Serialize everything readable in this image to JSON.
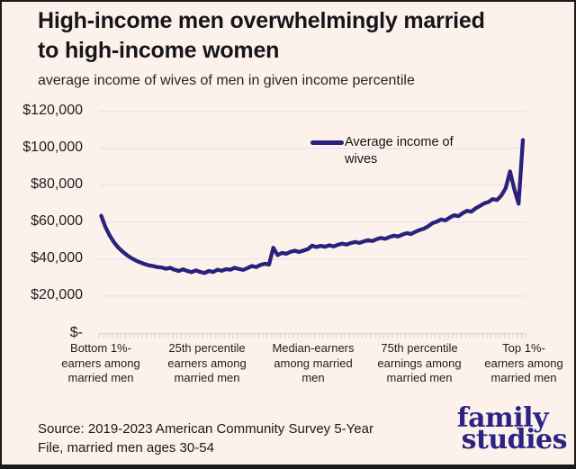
{
  "header": {
    "title": "High-income men overwhelmingly married\nto high-income women",
    "subtitle": "average income of wives of men in given income percentile"
  },
  "chart_data": {
    "type": "line",
    "title": "High-income men overwhelmingly married to high-income women",
    "subtitle": "average income of wives of men in given income percentile",
    "x_unit": "husband income percentile among married men",
    "x_range": [
      1,
      99
    ],
    "series": [
      {
        "name": "Average income of wives",
        "values": [
          63500,
          57200,
          52600,
          49000,
          46200,
          44000,
          42100,
          40600,
          39300,
          38300,
          37400,
          36700,
          36300,
          35700,
          35500,
          34800,
          35300,
          34300,
          33600,
          34500,
          33600,
          33000,
          33900,
          33100,
          32500,
          33600,
          33100,
          34300,
          33700,
          34600,
          34300,
          35300,
          34700,
          34200,
          35200,
          36300,
          35700,
          36900,
          37500,
          37100,
          46200,
          42200,
          43400,
          42900,
          44000,
          44600,
          43900,
          44700,
          45400,
          47300,
          46600,
          47200,
          46700,
          47500,
          46900,
          47800,
          48400,
          47900,
          48700,
          49300,
          48800,
          49600,
          50300,
          49800,
          50800,
          51500,
          51000,
          52000,
          52700,
          52300,
          53300,
          54100,
          53600,
          54800,
          55800,
          56500,
          57800,
          59500,
          60300,
          61500,
          61000,
          62500,
          63800,
          63300,
          64900,
          66200,
          65700,
          67500,
          68800,
          70200,
          71000,
          72500,
          72000,
          74500,
          78500,
          87500,
          78000,
          70000,
          104500
        ]
      }
    ],
    "x_axis": {
      "tick_labels": [
        "Bottom 1%-\nearners among\nmarried men",
        "25th percentile\nearners among\nmarried men",
        "Median-earners\namong married\nmen",
        "75th percentile\nearnings among\nmarried men",
        "Top 1%-\nearners among\nmarried men"
      ],
      "tick_percentiles": [
        1,
        25,
        50,
        75,
        99
      ]
    },
    "y_axis": {
      "tick_labels": [
        "$120,000",
        "$100,000",
        "$80,000",
        "$60,000",
        "$40,000",
        "$20,000",
        "$-"
      ],
      "tick_values": [
        120000,
        100000,
        80000,
        60000,
        40000,
        20000,
        0
      ],
      "ylim": [
        0,
        120000
      ]
    },
    "legend": {
      "label": "Average income of\nwives",
      "position": "top-center"
    },
    "grid": "horizontal",
    "line_color": "#29217b"
  },
  "footer": {
    "source": "Source: 2019-2023 American Community Survey 5-Year\nFile, married men ages 30-54",
    "logo_line1": "family",
    "logo_line2": "studies"
  },
  "colors": {
    "background": "#fcf1eb",
    "line": "#29217b",
    "logo": "#2b2484",
    "gridline": "#e6e5ef",
    "axis_tick": "#ded4d8",
    "border": "#1a1a1a",
    "title_text": "#15151a"
  }
}
